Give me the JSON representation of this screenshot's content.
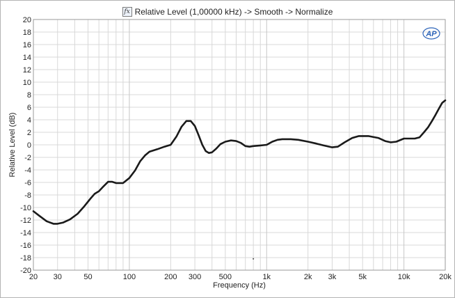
{
  "chart_data": {
    "type": "line",
    "title": "Relative Level (1,00000 kHz) -> Smooth -> Normalize",
    "title_icon": "fx-icon",
    "logo_text": "AP",
    "xlabel": "Frequency (Hz)",
    "ylabel": "Relative Level (dB)",
    "xscale": "log",
    "xlim": [
      20,
      20000
    ],
    "ylim": [
      -20,
      20
    ],
    "grid": true,
    "line_color": "#1a1a1a",
    "grid_color": "#d8d8d8",
    "y_ticks": [
      "20",
      "18",
      "16",
      "14",
      "12",
      "10",
      "8",
      "6",
      "4",
      "2",
      "0",
      "-2",
      "-4",
      "-6",
      "-8",
      "-10",
      "-12",
      "-14",
      "-16",
      "-18",
      "-20"
    ],
    "y_tick_values": [
      20,
      18,
      16,
      14,
      12,
      10,
      8,
      6,
      4,
      2,
      0,
      -2,
      -4,
      -6,
      -8,
      -10,
      -12,
      -14,
      -16,
      -18,
      -20
    ],
    "x_ticks": [
      "20",
      "30",
      "50",
      "100",
      "200",
      "300",
      "500",
      "1k",
      "2k",
      "3k",
      "5k",
      "10k",
      "20k"
    ],
    "x_tick_values": [
      20,
      30,
      50,
      100,
      200,
      300,
      500,
      1000,
      2000,
      3000,
      5000,
      10000,
      20000
    ],
    "series": [
      {
        "points": [
          [
            20,
            -10.6
          ],
          [
            22,
            -11.3
          ],
          [
            25,
            -12.2
          ],
          [
            28,
            -12.6
          ],
          [
            30,
            -12.6
          ],
          [
            33,
            -12.4
          ],
          [
            37,
            -11.9
          ],
          [
            42,
            -11.0
          ],
          [
            47,
            -9.8
          ],
          [
            52,
            -8.6
          ],
          [
            56,
            -7.8
          ],
          [
            60,
            -7.4
          ],
          [
            65,
            -6.6
          ],
          [
            70,
            -5.9
          ],
          [
            75,
            -5.9
          ],
          [
            80,
            -6.1
          ],
          [
            90,
            -6.1
          ],
          [
            100,
            -5.3
          ],
          [
            110,
            -4.1
          ],
          [
            120,
            -2.6
          ],
          [
            130,
            -1.7
          ],
          [
            140,
            -1.1
          ],
          [
            160,
            -0.7
          ],
          [
            180,
            -0.3
          ],
          [
            200,
            0.0
          ],
          [
            220,
            1.3
          ],
          [
            240,
            2.9
          ],
          [
            260,
            3.8
          ],
          [
            280,
            3.8
          ],
          [
            300,
            3.0
          ],
          [
            320,
            1.5
          ],
          [
            340,
            0.0
          ],
          [
            360,
            -1.0
          ],
          [
            380,
            -1.3
          ],
          [
            400,
            -1.2
          ],
          [
            430,
            -0.6
          ],
          [
            460,
            0.1
          ],
          [
            500,
            0.5
          ],
          [
            550,
            0.7
          ],
          [
            600,
            0.6
          ],
          [
            650,
            0.3
          ],
          [
            700,
            -0.2
          ],
          [
            750,
            -0.3
          ],
          [
            800,
            -0.2
          ],
          [
            900,
            -0.1
          ],
          [
            1000,
            0.0
          ],
          [
            1100,
            0.5
          ],
          [
            1200,
            0.8
          ],
          [
            1300,
            0.9
          ],
          [
            1500,
            0.9
          ],
          [
            1700,
            0.8
          ],
          [
            2000,
            0.5
          ],
          [
            2300,
            0.2
          ],
          [
            2600,
            -0.1
          ],
          [
            3000,
            -0.4
          ],
          [
            3300,
            -0.3
          ],
          [
            3700,
            0.4
          ],
          [
            4200,
            1.1
          ],
          [
            4700,
            1.4
          ],
          [
            5500,
            1.4
          ],
          [
            6500,
            1.1
          ],
          [
            7300,
            0.6
          ],
          [
            8000,
            0.4
          ],
          [
            8800,
            0.5
          ],
          [
            10000,
            1.0
          ],
          [
            11000,
            1.0
          ],
          [
            12000,
            1.0
          ],
          [
            13000,
            1.2
          ],
          [
            14000,
            2.0
          ],
          [
            15000,
            2.8
          ],
          [
            16000,
            3.8
          ],
          [
            17000,
            4.8
          ],
          [
            18000,
            5.8
          ],
          [
            19000,
            6.7
          ],
          [
            20000,
            7.1
          ]
        ]
      }
    ],
    "annotations": [
      {
        "type": "dot",
        "x": 800,
        "y": -18.2
      }
    ]
  }
}
